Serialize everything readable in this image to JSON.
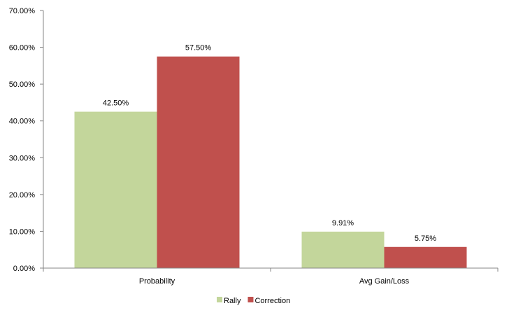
{
  "chart_data": {
    "type": "bar",
    "categories": [
      "Probability",
      "Avg Gain/Loss"
    ],
    "series": [
      {
        "name": "Rally",
        "values": [
          42.5,
          9.91
        ],
        "labels": [
          "42.50%",
          "9.91%"
        ],
        "color": "#c3d69b"
      },
      {
        "name": "Correction",
        "values": [
          57.5,
          5.75
        ],
        "labels": [
          "57.50%",
          "5.75%"
        ],
        "color": "#c0504d"
      }
    ],
    "y_ticks": [
      0,
      10,
      20,
      30,
      40,
      50,
      60,
      70
    ],
    "y_tick_labels": [
      "0.00%",
      "10.00%",
      "20.00%",
      "30.00%",
      "40.00%",
      "50.00%",
      "60.00%",
      "70.00%"
    ],
    "ylim": [
      0,
      70
    ],
    "grid": false,
    "legend_position": "bottom",
    "title": "",
    "xlabel": "",
    "ylabel": ""
  }
}
